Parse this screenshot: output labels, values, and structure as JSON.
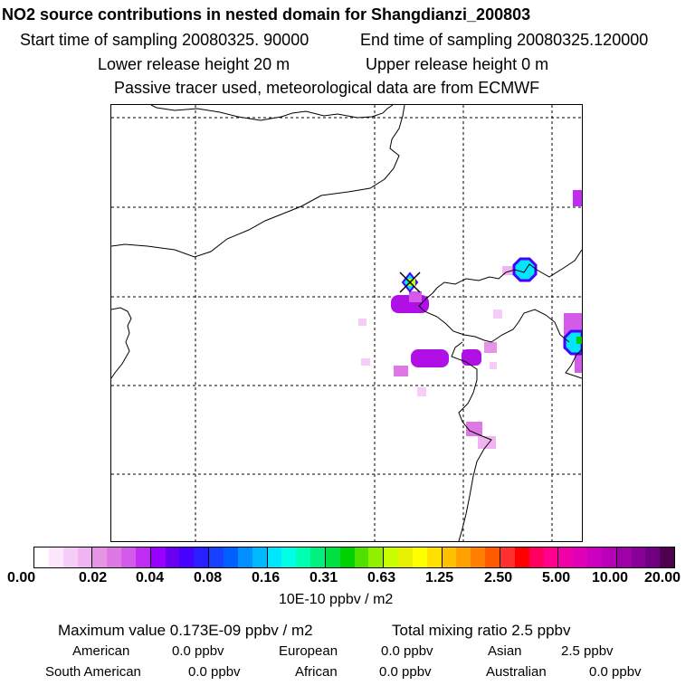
{
  "header": {
    "title": "NO2 source contributions in nested domain for Shangdianzi_200803",
    "start_time": "Start time of sampling 20080325. 90000",
    "end_time": "End time of sampling 20080325.120000",
    "lower_height": "Lower release height   20 m",
    "upper_height": "Upper release height    0 m",
    "tracer_note": "Passive tracer used, meteorological data are from ECMWF"
  },
  "chart_data": {
    "type": "heatmap",
    "title": "NO2 source contributions in nested domain for Shangdianzi_200803",
    "grid": true,
    "colorbar": {
      "tick_labels": [
        "0.00",
        "0.02",
        "0.04",
        "0.08",
        "0.16",
        "0.31",
        "0.63",
        "1.25",
        "2.50",
        "5.00",
        "10.00",
        "20.00"
      ],
      "unit": "10E-10 ppbv / m2",
      "colors": [
        "#ffffff",
        "#fbe6fb",
        "#f6cdf6",
        "#f0b4f0",
        "#e695e6",
        "#de78e4",
        "#d35aea",
        "#c02cf2",
        "#9a00ff",
        "#6a00f2",
        "#4800ff",
        "#2a20ff",
        "#1840ff",
        "#0060ff",
        "#0090ff",
        "#00b8ff",
        "#00e6ff",
        "#00ffe6",
        "#00ffb0",
        "#00f080",
        "#00e040",
        "#00d000",
        "#50e000",
        "#90f000",
        "#c8ff00",
        "#e6f000",
        "#ffff00",
        "#ffe000",
        "#ffc000",
        "#ffa000",
        "#ff8000",
        "#ff5a00",
        "#ff3030",
        "#ff0000",
        "#ff0060",
        "#ff0090",
        "#f000a8",
        "#e000b8",
        "#cc00c0",
        "#b800b8",
        "#a000a8",
        "#880098",
        "#700080",
        "#500050"
      ]
    }
  },
  "summary": {
    "max_value": "Maximum value  0.173E-09 ppbv / m2",
    "total_mixing": "Total mixing ratio       2.5 ppbv",
    "regions": [
      {
        "name": "American",
        "value": "0.0 ppbv"
      },
      {
        "name": "European",
        "value": "0.0 ppbv"
      },
      {
        "name": "Asian",
        "value": "2.5 ppbv"
      },
      {
        "name": "South American",
        "value": "0.0 ppbv"
      },
      {
        "name": "African",
        "value": "0.0 ppbv"
      },
      {
        "name": "Australian",
        "value": "0.0 ppbv"
      }
    ]
  }
}
